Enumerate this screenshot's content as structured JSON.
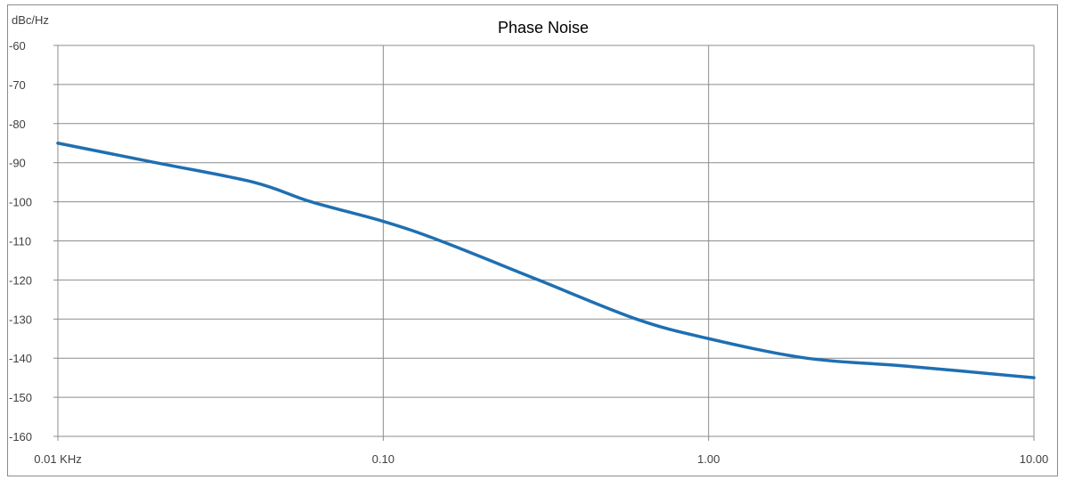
{
  "chart_data": {
    "type": "line",
    "title": "Phase Noise",
    "ylabel": "dBc/Hz",
    "xlabel": "",
    "x_scale": "log",
    "xlim": [
      0.01,
      10
    ],
    "ylim": [
      -160,
      -60
    ],
    "grid": true,
    "legend": "none",
    "x_tick_labels": [
      {
        "value": 0.01,
        "label": "0.01 KHz"
      },
      {
        "value": 0.1,
        "label": "0.10"
      },
      {
        "value": 1,
        "label": "1.00"
      },
      {
        "value": 10,
        "label": "10.00"
      }
    ],
    "y_ticks": [
      -60,
      -70,
      -80,
      -90,
      -100,
      -110,
      -120,
      -130,
      -140,
      -150,
      -160
    ],
    "series": [
      {
        "x": [
          0.01,
          0.02,
          0.04,
          0.06,
          0.1,
          0.15,
          0.3,
          0.6,
          1,
          2,
          4,
          10
        ],
        "y": [
          -85,
          -90,
          -95,
          -100,
          -105,
          -110,
          -120,
          -130,
          -135,
          -140,
          -142,
          -145
        ],
        "color": "#1f6fb2"
      }
    ]
  }
}
